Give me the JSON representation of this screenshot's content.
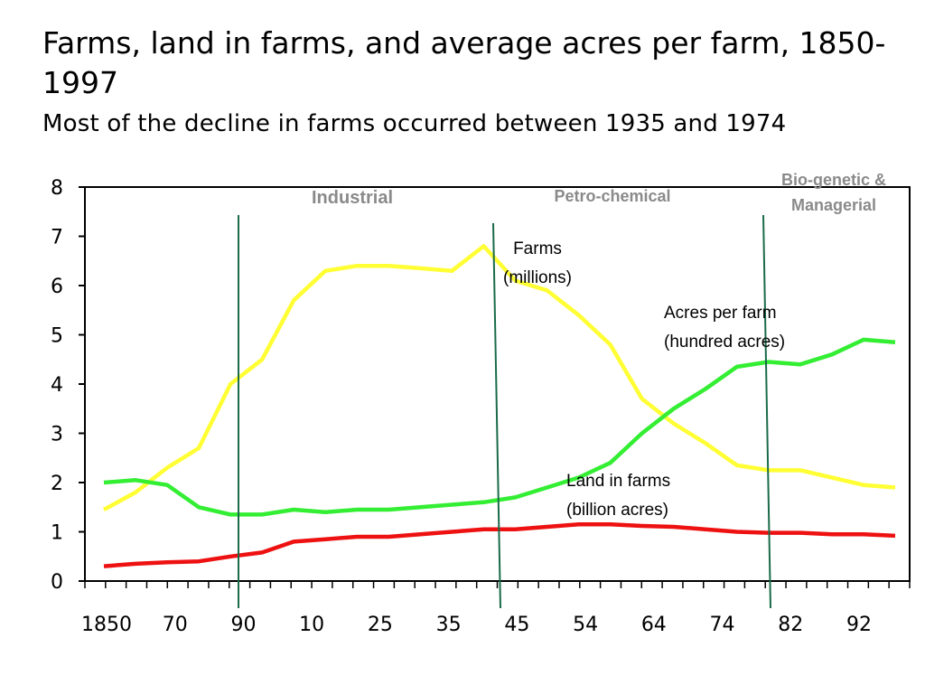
{
  "chart_data": {
    "type": "line",
    "title": "Farms, land in farms, and average acres per farm, 1850-1997",
    "subtitle": "Most of the decline in farms occurred between 1935 and 1974",
    "xlabel": "",
    "ylabel": "",
    "ylim": [
      0,
      8
    ],
    "yticks": [
      "0",
      "1",
      "2",
      "3",
      "4",
      "5",
      "6",
      "7",
      "8"
    ],
    "xtick_labels": [
      "1850",
      "70",
      "90",
      "10",
      "25",
      "35",
      "45",
      "54",
      "64",
      "74",
      "82",
      "92"
    ],
    "grid": false,
    "legend": "none",
    "series": [
      {
        "name": "Farms (millions)",
        "color": "#ffff33",
        "values": [
          1.45,
          1.8,
          2.3,
          2.7,
          4.0,
          4.5,
          5.7,
          6.3,
          6.4,
          6.4,
          6.35,
          6.3,
          6.8,
          6.1,
          5.9,
          5.4,
          4.8,
          3.7,
          3.2,
          2.8,
          2.35,
          2.25,
          2.25,
          2.1,
          1.95,
          1.9
        ]
      },
      {
        "name": "Acres per farm (hundred acres)",
        "color": "#33ee33",
        "values": [
          2.0,
          2.05,
          1.95,
          1.5,
          1.35,
          1.35,
          1.45,
          1.4,
          1.45,
          1.45,
          1.5,
          1.55,
          1.6,
          1.7,
          1.9,
          2.1,
          2.4,
          3.0,
          3.5,
          3.9,
          4.35,
          4.45,
          4.4,
          4.6,
          4.9,
          4.85
        ]
      },
      {
        "name": "Land in farms (billion acres)",
        "color": "#ee1111",
        "values": [
          0.3,
          0.35,
          0.38,
          0.4,
          0.5,
          0.58,
          0.8,
          0.85,
          0.9,
          0.9,
          0.95,
          1.0,
          1.05,
          1.05,
          1.1,
          1.15,
          1.15,
          1.12,
          1.1,
          1.05,
          1.0,
          0.98,
          0.98,
          0.95,
          0.95,
          0.92
        ]
      }
    ],
    "annotations": {
      "farms": [
        "Farms",
        "(millions)"
      ],
      "acres": [
        "Acres per farm",
        "(hundred acres)"
      ],
      "land": [
        "Land in farms",
        "(billion acres)"
      ]
    },
    "eras": {
      "industrial": "Industrial",
      "petro": "Petro-chemical",
      "bio_line1": "Bio-genetic &",
      "bio_line2": "Managerial"
    },
    "era_line_color": "#1a6b4a"
  }
}
